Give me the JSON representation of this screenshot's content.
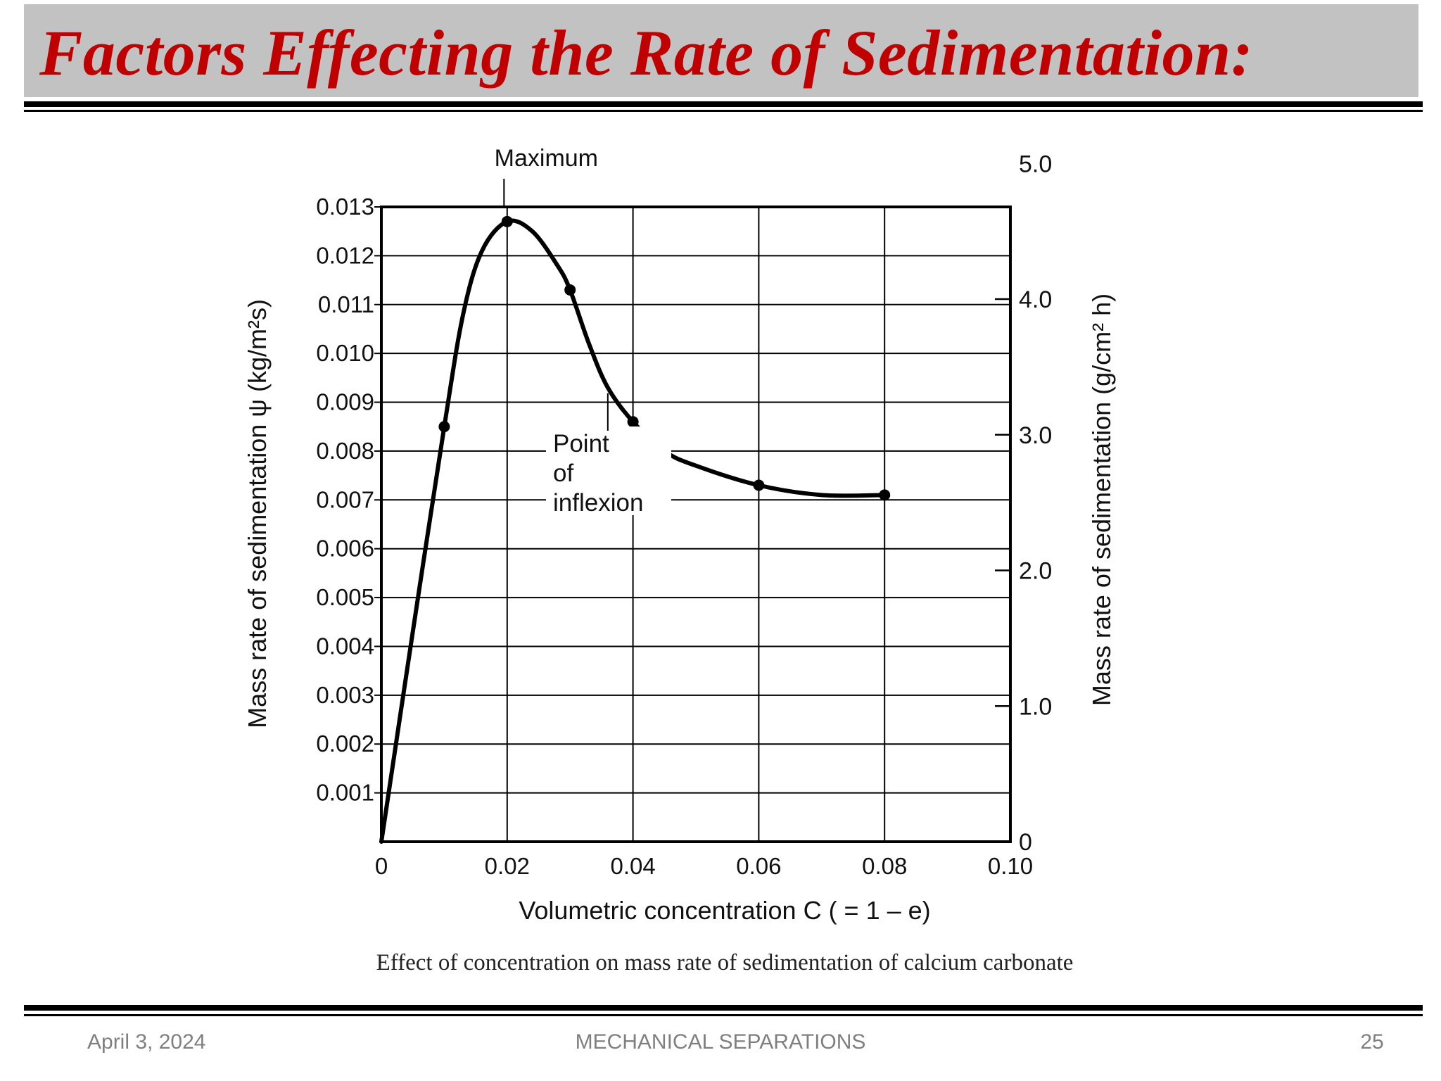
{
  "slide": {
    "title": "Factors Effecting the Rate of Sedimentation:",
    "title_color": "#c00000",
    "band_color": "#c2c2c2"
  },
  "footer": {
    "date": "April 3, 2024",
    "center": "MECHANICAL SEPARATIONS",
    "page": "25",
    "color": "#7f7f7f"
  },
  "chart_data": {
    "type": "line",
    "title": "",
    "caption": "Effect of concentration on mass rate of sedimentation of calcium carbonate",
    "xlabel": "Volumetric concentration C ( = 1 – e)",
    "ylabel": "Mass rate of sedimentation ψ (kg/m²s)",
    "y2label": "Mass rate of sedimentation (g/cm² h)",
    "xlim": [
      0,
      0.1
    ],
    "ylim": [
      0,
      0.013
    ],
    "y2lim": [
      0,
      4.68
    ],
    "x_ticks": [
      "0",
      "0.02",
      "0.04",
      "0.06",
      "0.08",
      "0.10"
    ],
    "y_ticks": [
      "0.001",
      "0.002",
      "0.003",
      "0.004",
      "0.005",
      "0.006",
      "0.007",
      "0.008",
      "0.009",
      "0.010",
      "0.011",
      "0.012",
      "0.013"
    ],
    "y2_ticks": [
      {
        "value": 0,
        "label": "0"
      },
      {
        "value": 1.0,
        "label": "1.0"
      },
      {
        "value": 2.0,
        "label": "2.0"
      },
      {
        "value": 3.0,
        "label": "3.0"
      },
      {
        "value": 4.0,
        "label": "4.0"
      },
      {
        "value": 5.0,
        "label": "5.0"
      }
    ],
    "grid": true,
    "series": [
      {
        "points": [
          {
            "x": 0.01,
            "y": 0.0085
          },
          {
            "x": 0.02,
            "y": 0.0127
          },
          {
            "x": 0.03,
            "y": 0.0113
          },
          {
            "x": 0.04,
            "y": 0.0086
          },
          {
            "x": 0.06,
            "y": 0.0073
          },
          {
            "x": 0.08,
            "y": 0.0071
          }
        ],
        "curve": [
          {
            "x": 0.0,
            "y": 0.0
          },
          {
            "x": 0.005,
            "y": 0.0043
          },
          {
            "x": 0.01,
            "y": 0.0085
          },
          {
            "x": 0.013,
            "y": 0.0108
          },
          {
            "x": 0.016,
            "y": 0.0121
          },
          {
            "x": 0.02,
            "y": 0.0127
          },
          {
            "x": 0.024,
            "y": 0.0125
          },
          {
            "x": 0.028,
            "y": 0.0118
          },
          {
            "x": 0.03,
            "y": 0.0113
          },
          {
            "x": 0.033,
            "y": 0.0102
          },
          {
            "x": 0.036,
            "y": 0.0093
          },
          {
            "x": 0.04,
            "y": 0.0086
          },
          {
            "x": 0.045,
            "y": 0.008
          },
          {
            "x": 0.05,
            "y": 0.0077
          },
          {
            "x": 0.06,
            "y": 0.0073
          },
          {
            "x": 0.07,
            "y": 0.0071
          },
          {
            "x": 0.08,
            "y": 0.0071
          }
        ]
      }
    ],
    "annotations": [
      {
        "text": "Maximum",
        "x": 0.0195,
        "y": 0.013
      },
      {
        "text_lines": [
          "Point",
          "of",
          "inflexion"
        ],
        "x": 0.036,
        "y": 0.0093
      }
    ]
  }
}
